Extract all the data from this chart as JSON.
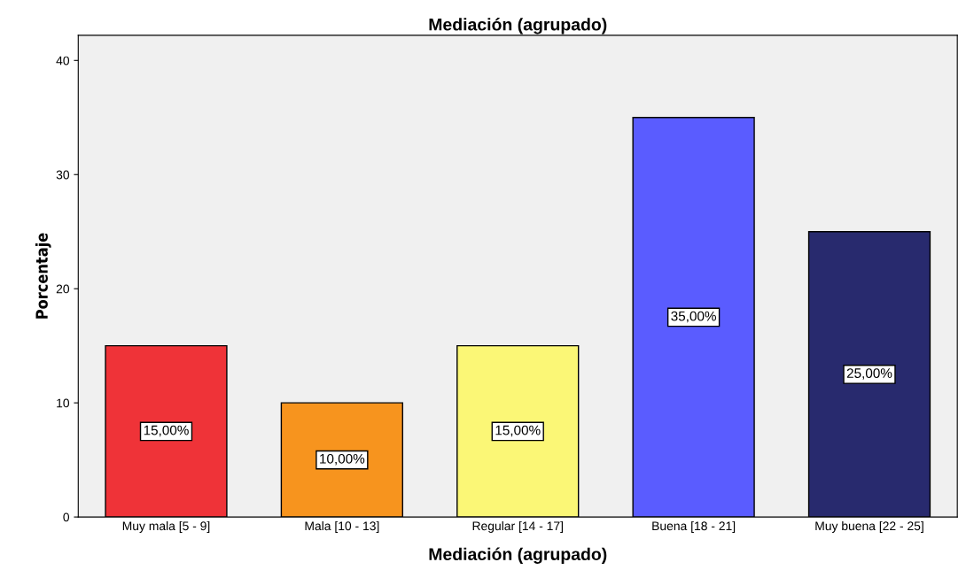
{
  "chart_data": {
    "type": "bar",
    "title": "Mediación (agrupado)",
    "xlabel": "Mediación (agrupado)",
    "ylabel": "Porcentaje",
    "categories": [
      "Muy mala [5 - 9]",
      "Mala [10 - 13]",
      "Regular [14 - 17]",
      "Buena [18 - 21]",
      "Muy buena [22 - 25]"
    ],
    "values": [
      15,
      10,
      15,
      35,
      25
    ],
    "colors": [
      "#ef3338",
      "#f7941e",
      "#fbf776",
      "#5a5cff",
      "#282a6e"
    ],
    "value_labels": [
      "15,00%",
      "10,00%",
      "15,00%",
      "35,00%",
      "25,00%"
    ],
    "ylim": [
      0,
      42.2
    ],
    "yticks": [
      0,
      10,
      20,
      30,
      40
    ],
    "grid": false,
    "legend": false
  }
}
